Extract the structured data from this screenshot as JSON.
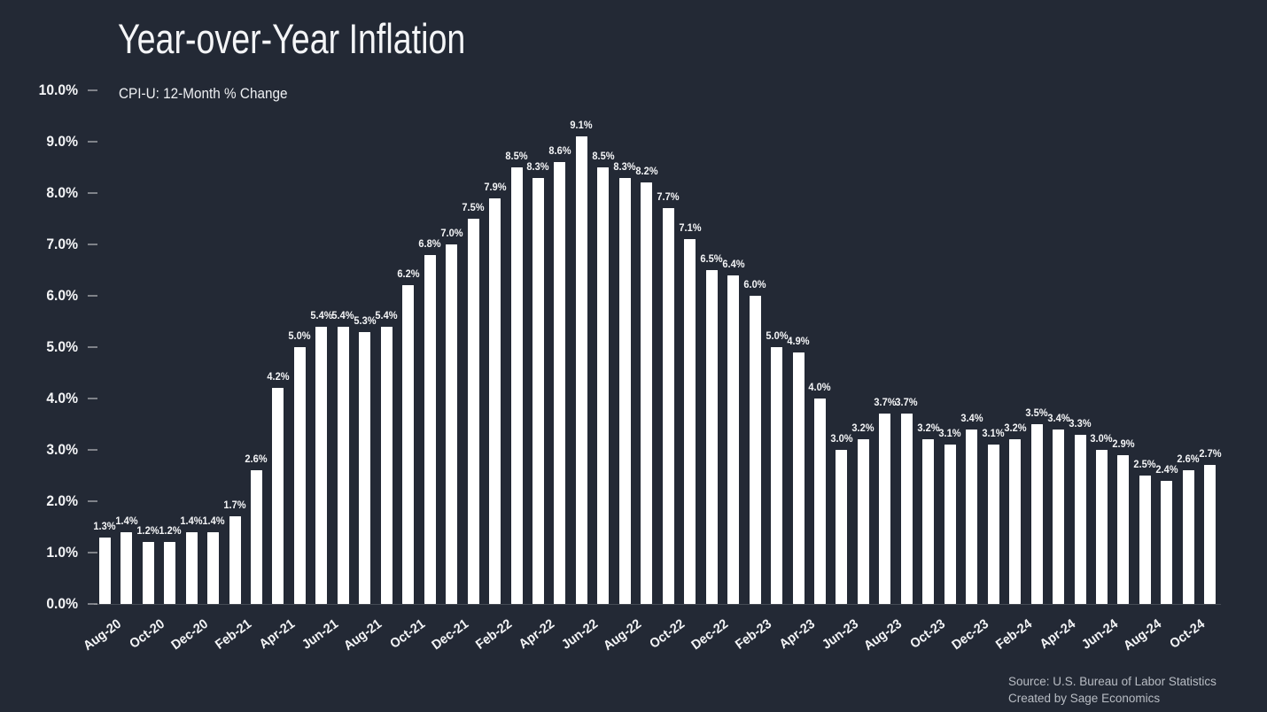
{
  "title": "Year-over-Year Inflation",
  "subtitle": "CPI-U: 12-Month % Change",
  "source": {
    "line1": "Source: U.S. Bureau of Labor Statistics",
    "line2": "Created by Sage Economics"
  },
  "colors": {
    "background": "#232935",
    "bar": "#ffffff",
    "text": "#ffffff",
    "muted_text": "#b9bdc4"
  },
  "chart_data": {
    "type": "bar",
    "title": "Year-over-Year Inflation",
    "subtitle": "CPI-U: 12-Month % Change",
    "ylabel": "",
    "xlabel": "",
    "ylim": [
      0,
      10
    ],
    "grid": false,
    "legend": false,
    "y_tick_labels": [
      "0.0%",
      "1.0%",
      "2.0%",
      "3.0%",
      "4.0%",
      "5.0%",
      "6.0%",
      "7.0%",
      "8.0%",
      "9.0%",
      "10.0%"
    ],
    "x_tick_labels": [
      "Aug-20",
      "Oct-20",
      "Dec-20",
      "Feb-21",
      "Apr-21",
      "Jun-21",
      "Aug-21",
      "Oct-21",
      "Dec-21",
      "Feb-22",
      "Apr-22",
      "Jun-22",
      "Aug-22",
      "Oct-22",
      "Dec-22",
      "Feb-23",
      "Apr-23",
      "Jun-23",
      "Aug-23",
      "Oct-23",
      "Dec-23",
      "Feb-24",
      "Apr-24",
      "Jun-24",
      "Aug-24",
      "Oct-24"
    ],
    "x_tick_every": 2,
    "values": [
      1.3,
      1.4,
      1.2,
      1.2,
      1.4,
      1.4,
      1.7,
      2.6,
      4.2,
      5.0,
      5.4,
      5.4,
      5.3,
      5.4,
      6.2,
      6.8,
      7.0,
      7.5,
      7.9,
      8.5,
      8.3,
      8.6,
      9.1,
      8.5,
      8.3,
      8.2,
      7.7,
      7.1,
      6.5,
      6.4,
      6.0,
      5.0,
      4.9,
      4.0,
      3.0,
      3.2,
      3.7,
      3.7,
      3.2,
      3.1,
      3.4,
      3.1,
      3.2,
      3.5,
      3.4,
      3.3,
      3.0,
      2.9,
      2.5,
      2.4,
      2.6,
      2.7
    ],
    "bar_labels": [
      "1.3%",
      "1.4%",
      "1.2%",
      "1.2%",
      "1.4%",
      "1.4%",
      "1.7%",
      "2.6%",
      "4.2%",
      "5.0%",
      "5.4%",
      "5.4%",
      "5.3%",
      "5.4%",
      "6.2%",
      "6.8%",
      "7.0%",
      "7.5%",
      "7.9%",
      "8.5%",
      "8.3%",
      "8.6%",
      "9.1%",
      "8.5%",
      "8.3%",
      "8.2%",
      "7.7%",
      "7.1%",
      "6.5%",
      "6.4%",
      "6.0%",
      "5.0%",
      "4.9%",
      "4.0%",
      "3.0%",
      "3.2%",
      "3.7%",
      "3.7%",
      "3.2%",
      "3.1%",
      "3.4%",
      "3.1%",
      "3.2%",
      "3.5%",
      "3.4%",
      "3.3%",
      "3.0%",
      "2.9%",
      "2.5%",
      "2.4%",
      "2.6%",
      "2.7%"
    ]
  }
}
